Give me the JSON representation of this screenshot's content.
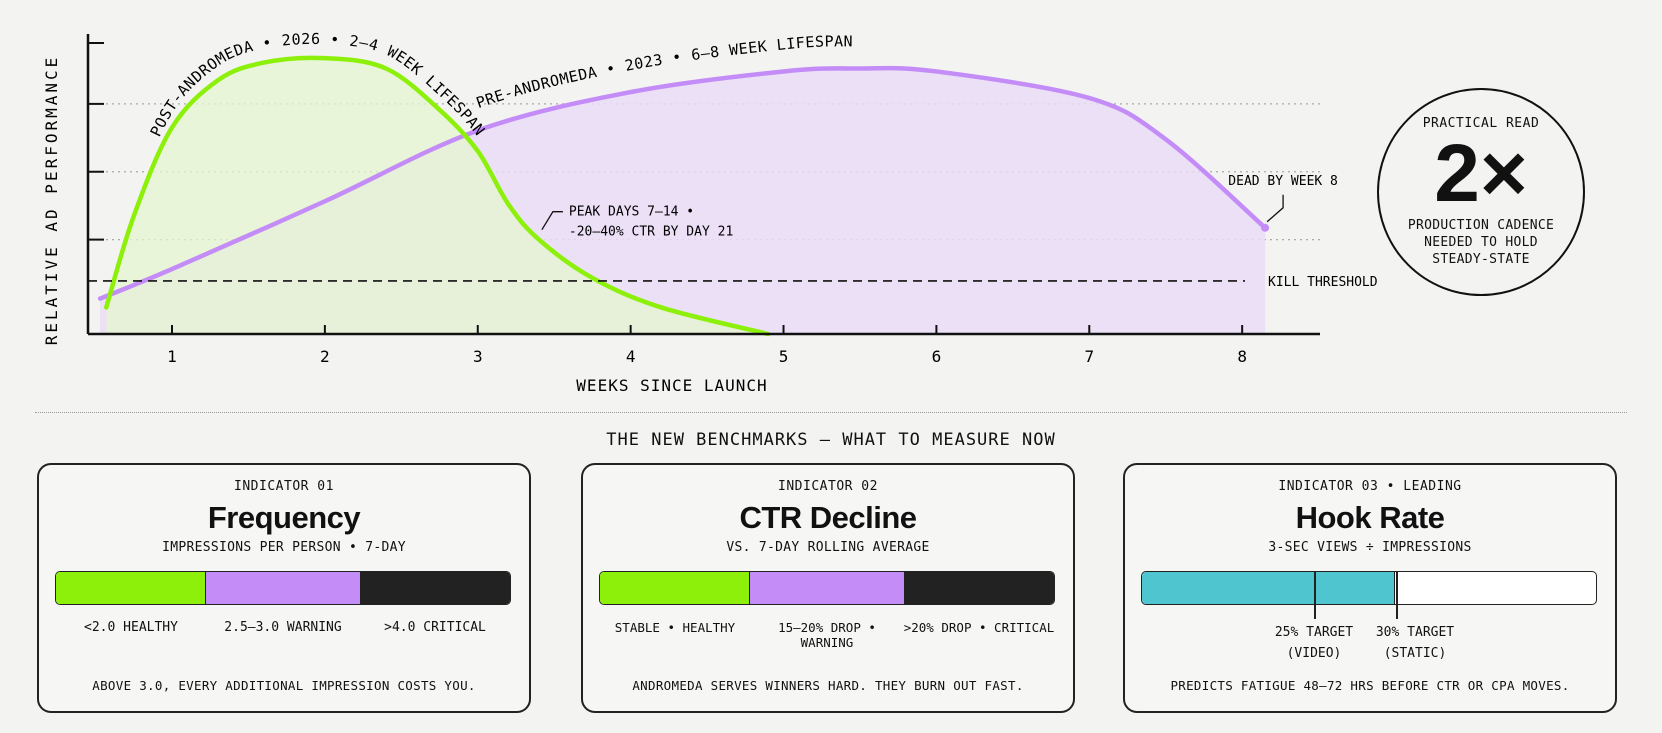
{
  "chart_data": {
    "type": "line",
    "xlabel": "WEEKS SINCE LAUNCH",
    "ylabel": "RELATIVE AD PERFORMANCE",
    "x_ticks": [
      "1",
      "2",
      "3",
      "4",
      "5",
      "6",
      "7",
      "8"
    ],
    "xlim": [
      0.45,
      8.4
    ],
    "ylim": [
      0,
      100
    ],
    "grid": "dotted horizontal",
    "series": [
      {
        "name": "POST-ANDROMEDA • 2026 • 2–4 WEEK LIFESPAN",
        "color": "#8cf00a",
        "fill": "#e6f5cf",
        "points": [
          [
            0.57,
            9
          ],
          [
            0.75,
            40
          ],
          [
            1,
            70
          ],
          [
            1.3,
            86
          ],
          [
            1.6,
            92
          ],
          [
            2,
            93.5
          ],
          [
            2.4,
            90
          ],
          [
            2.75,
            76
          ],
          [
            3,
            62
          ],
          [
            3.2,
            44
          ],
          [
            3.4,
            32
          ],
          [
            3.75,
            19
          ],
          [
            4.2,
            9
          ],
          [
            4.9,
            0
          ]
        ]
      },
      {
        "name": "PRE-ANDROMEDA • 2023 • 6–8 WEEK LIFESPAN",
        "color": "#c48cf7",
        "fill": "#e9dcf7",
        "points": [
          [
            0.53,
            12
          ],
          [
            1,
            22
          ],
          [
            2,
            45
          ],
          [
            3,
            69
          ],
          [
            4,
            82
          ],
          [
            5,
            89
          ],
          [
            5.5,
            90
          ],
          [
            6,
            89
          ],
          [
            7,
            80
          ],
          [
            7.5,
            66
          ],
          [
            8.15,
            36
          ]
        ]
      }
    ],
    "threshold": {
      "value": 18,
      "label": "KILL THRESHOLD"
    },
    "annotations": [
      {
        "text": [
          "PEAK DAYS 7–14 •",
          "-20–40% CTR BY DAY 21"
        ],
        "x": 3.4,
        "y": 34
      },
      {
        "text": [
          "DEAD BY WEEK 8"
        ],
        "x": 8.15,
        "y": 36
      }
    ]
  },
  "practical": {
    "kicker": "PRACTICAL READ",
    "value": "2×",
    "lines": [
      "PRODUCTION CADENCE",
      "NEEDED TO HOLD",
      "STEADY-STATE"
    ]
  },
  "benchmarks_title": "THE NEW BENCHMARKS — WHAT TO MEASURE NOW",
  "colors": {
    "green": "#8cf00a",
    "purple": "#c48cf7",
    "black": "#222222",
    "teal": "#4fc6cf"
  },
  "cards": [
    {
      "indicator": "INDICATOR 01",
      "title": "Frequency",
      "subtitle": "IMPRESSIONS PER PERSON • 7-DAY",
      "zones": [
        "<2.0 HEALTHY",
        "2.5–3.0 WARNING",
        ">4.0 CRITICAL"
      ],
      "footer": "ABOVE 3.0, EVERY ADDITIONAL IMPRESSION COSTS YOU."
    },
    {
      "indicator": "INDICATOR 02",
      "title": "CTR Decline",
      "subtitle": "VS. 7-DAY ROLLING AVERAGE",
      "zones": [
        "STABLE • HEALTHY",
        "15–20% DROP • WARNING",
        ">20% DROP • CRITICAL"
      ],
      "footer": "ANDROMEDA SERVES WINNERS HARD. THEY BURN OUT FAST."
    },
    {
      "indicator": "INDICATOR 03 • LEADING",
      "title": "Hook Rate",
      "subtitle": "3-SEC VIEWS ÷ IMPRESSIONS",
      "markers": [
        {
          "value": 25,
          "line1": "25% TARGET",
          "line2": "(VIDEO)"
        },
        {
          "value": 30,
          "line1": "30% TARGET",
          "line2": "(STATIC)"
        }
      ],
      "footer": "PREDICTS FATIGUE 48–72 HRS BEFORE CTR OR CPA MOVES."
    }
  ]
}
